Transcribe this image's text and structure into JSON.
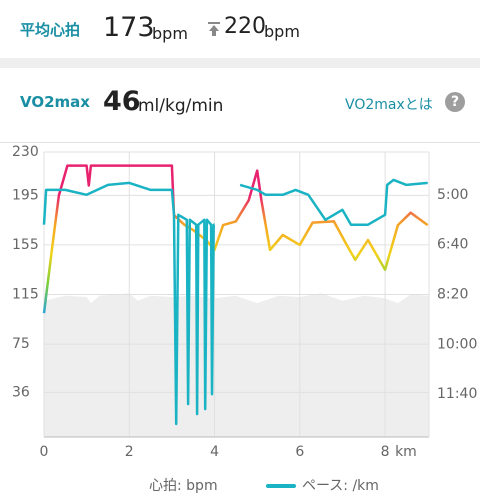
{
  "summary": {
    "avg_hr_label": "平均心拍",
    "avg_hr": "173",
    "avg_hr_unit": "bpm",
    "max_hr": "220",
    "max_hr_unit": "bpm"
  },
  "vo2": {
    "label": "VO2max",
    "value": "46",
    "unit": "ml/kg/min",
    "link": "VO2maxとは",
    "help": "?"
  },
  "chart_data": {
    "type": "line",
    "xlim": [
      0,
      9.03
    ],
    "xticks": [
      0,
      2,
      4,
      6,
      {
        "value": 8,
        "label": "8"
      }
    ],
    "x_unit": "km",
    "ylim": [
      0,
      230
    ],
    "yticks": [
      36,
      75,
      115,
      155,
      195,
      230
    ],
    "y2lim": [
      786,
      214
    ],
    "y2ticks": [
      {
        "value": 300,
        "label": "5:00"
      },
      {
        "value": 400,
        "label": "6:40"
      },
      {
        "value": 500,
        "label": "8:20"
      },
      {
        "value": 600,
        "label": "10:00"
      },
      {
        "value": 700,
        "label": "11:40"
      }
    ],
    "grid": true,
    "background_area": {
      "color": "#eeeeee",
      "x": [
        0,
        0.5,
        1.0,
        1.1,
        1.3,
        2.0,
        2.2,
        2.5,
        3.0,
        3.5,
        4.0,
        4.5,
        5.0,
        5.5,
        6.0,
        6.5,
        7.0,
        7.5,
        8.0,
        8.3,
        8.6,
        9.03
      ],
      "values": [
        110,
        114,
        113,
        108,
        114,
        116,
        110,
        114,
        113,
        114,
        112,
        114,
        108,
        114,
        113,
        116,
        110,
        114,
        112,
        108,
        115,
        114
      ]
    },
    "series": [
      {
        "name": "心拍: bpm",
        "color": "#e8226e",
        "gradient": [
          "#e8226e",
          "#e8226e",
          "#f5a623",
          "#f2d21b",
          "#7ccf3b",
          "#2aa3d8"
        ],
        "x": [
          0,
          0.2,
          0.35,
          0.55,
          1.0,
          1.05,
          1.1,
          2.0,
          3.0,
          3.05,
          3.3,
          3.5,
          3.8,
          4.0,
          4.2,
          4.5,
          4.8,
          5.0,
          5.1,
          5.3,
          5.6,
          6.0,
          6.3,
          6.8,
          7.1,
          7.3,
          7.6,
          8.0,
          8.3,
          8.6,
          9.0
        ],
        "values": [
          100,
          155,
          195,
          219,
          219,
          203,
          219,
          219,
          219,
          179,
          171,
          167,
          159,
          151,
          171,
          174,
          191,
          215,
          191,
          151,
          163,
          155,
          173,
          174,
          155,
          143,
          159,
          135,
          171,
          181,
          171
        ]
      },
      {
        "name": "ペース: /km",
        "color": "#1ab3c4",
        "axis": "y2",
        "x": [
          0,
          0.05,
          0.5,
          1.0,
          1.5,
          2.0,
          2.5,
          3.0,
          3.05,
          3.1,
          3.15,
          3.35,
          3.38,
          3.42,
          3.57,
          3.59,
          3.62,
          3.76,
          3.78,
          3.82,
          3.92,
          3.94,
          3.98,
          4.0,
          4.06,
          4.6,
          5.0,
          5.2,
          5.6,
          5.9,
          6.2,
          6.6,
          7.0,
          7.2,
          7.6,
          8.0,
          8.05,
          8.2,
          8.5,
          9.0
        ],
        "values": [
          360,
          290,
          290,
          300,
          280,
          276,
          290,
          290,
          340,
          760,
          340,
          350,
          720,
          350,
          360,
          740,
          360,
          350,
          730,
          350,
          360,
          700,
          360,
          360,
          null,
          280,
          290,
          300,
          300,
          290,
          300,
          350,
          330,
          360,
          360,
          340,
          280,
          270,
          280,
          276
        ]
      }
    ]
  }
}
